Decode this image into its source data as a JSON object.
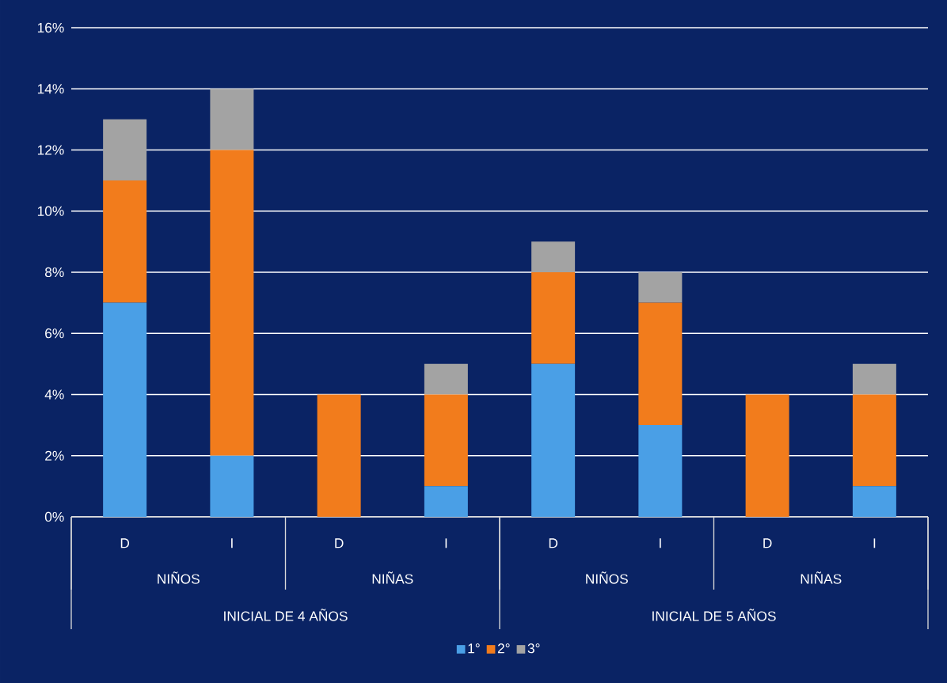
{
  "chart_data": {
    "type": "bar",
    "stacked": true,
    "categories": [
      "D",
      "I",
      "D",
      "I",
      "D",
      "I",
      "D",
      "I"
    ],
    "series": [
      {
        "name": "1°",
        "color": "#4a9fe6",
        "values": [
          7,
          2,
          0,
          1,
          5,
          3,
          0,
          1
        ]
      },
      {
        "name": "2°",
        "color": "#f27c1c",
        "values": [
          4,
          10,
          4,
          3,
          3,
          4,
          4,
          3
        ]
      },
      {
        "name": "3°",
        "color": "#a3a3a3",
        "values": [
          2,
          2,
          0,
          1,
          1,
          1,
          0,
          1
        ]
      }
    ],
    "ylim": [
      0,
      16
    ],
    "yticks": [
      {
        "value": 0,
        "label": "0%"
      },
      {
        "value": 2,
        "label": "2%"
      },
      {
        "value": 4,
        "label": "4%"
      },
      {
        "value": 6,
        "label": "6%"
      },
      {
        "value": 8,
        "label": "8%"
      },
      {
        "value": 10,
        "label": "10%"
      },
      {
        "value": 12,
        "label": "12%"
      },
      {
        "value": 14,
        "label": "14%"
      },
      {
        "value": 16,
        "label": "16%"
      }
    ],
    "grid": "y",
    "legend": "bottom",
    "annotations": [
      "NIÑOS",
      "NIÑAS",
      "NIÑOS",
      "NIÑAS",
      "INICIAL DE 4 AÑOS",
      "INICIAL DE 5 AÑOS"
    ]
  }
}
